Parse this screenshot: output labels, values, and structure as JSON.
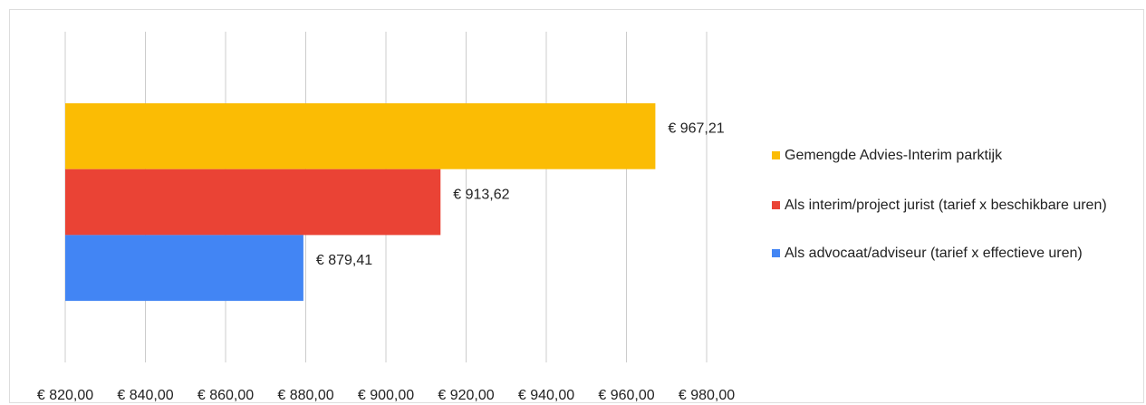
{
  "chart_data": {
    "type": "bar",
    "orientation": "horizontal",
    "categories": [
      null
    ],
    "series": [
      {
        "name": "Gemengde Advies-Interim parktijk",
        "color": "#fbbc04",
        "values": [
          967.21
        ],
        "value_labels": [
          "€ 967,21"
        ]
      },
      {
        "name": "Als interim/project jurist (tarief x beschikbare uren)",
        "color": "#ea4335",
        "values": [
          913.62
        ],
        "value_labels": [
          "€ 913,62"
        ]
      },
      {
        "name": "Als advocaat/adviseur (tarief x effectieve uren)",
        "color": "#4285f4",
        "values": [
          879.41
        ],
        "value_labels": [
          "€ 879,41"
        ]
      }
    ],
    "xlim": [
      820,
      980
    ],
    "xticks": [
      {
        "value": 820,
        "label": "€ 820,00"
      },
      {
        "value": 840,
        "label": "€ 840,00"
      },
      {
        "value": 860,
        "label": "€ 860,00"
      },
      {
        "value": 880,
        "label": "€ 880,00"
      },
      {
        "value": 900,
        "label": "€ 900,00"
      },
      {
        "value": 920,
        "label": "€ 920,00"
      },
      {
        "value": 940,
        "label": "€ 940,00"
      },
      {
        "value": 960,
        "label": "€ 960,00"
      },
      {
        "value": 980,
        "label": "€ 980,00"
      }
    ],
    "grid": true,
    "legend": "right"
  }
}
